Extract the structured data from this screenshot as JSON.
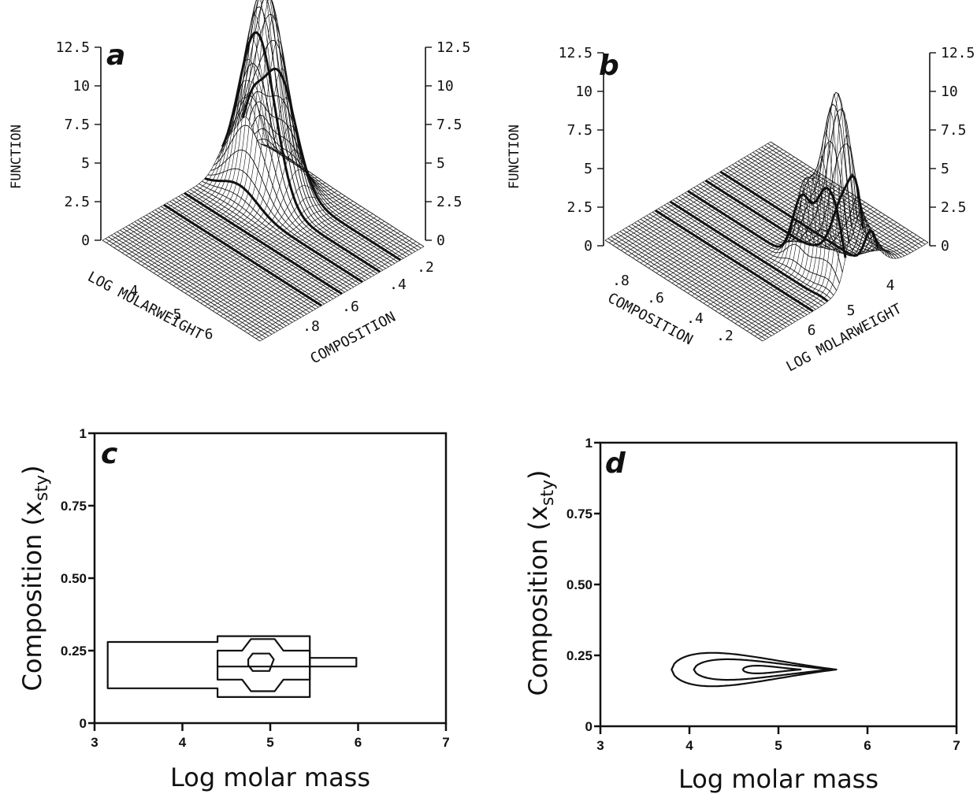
{
  "chart_data": [
    {
      "id": "a",
      "type": "surface3d",
      "panel_label": "a",
      "zlabel": "FUNCTION",
      "xlabel": "LOG MOLARWEIGHT",
      "ylabel": "COMPOSITION",
      "zticks": [
        "0",
        "2.5",
        "5",
        "7.5",
        "10",
        "12.5"
      ],
      "zlim": [
        0,
        12.5
      ],
      "xticks": [
        "4",
        "5",
        "6"
      ],
      "yticks": [
        ".8",
        ".6",
        ".4",
        ".2"
      ],
      "peak": {
        "log_molar_mass": 5.0,
        "composition": 0.2,
        "height": 12.5
      }
    },
    {
      "id": "b",
      "type": "surface3d",
      "panel_label": "b",
      "zlabel": "FUNCTION",
      "xlabel": "LOG MOLARWEIGHT",
      "ylabel": "COMPOSITION",
      "zticks": [
        "0",
        "2.5",
        "5",
        "7.5",
        "10",
        "12.5"
      ],
      "zlim": [
        0,
        12.5
      ],
      "xticks": [
        "6",
        "5",
        "4"
      ],
      "yticks": [
        ".8",
        ".6",
        ".4",
        ".2"
      ],
      "peak": {
        "log_molar_mass": 4.9,
        "composition": 0.2,
        "height": 10.5
      }
    },
    {
      "id": "c",
      "type": "contour",
      "panel_label": "c",
      "xlabel": "Log molar mass",
      "ylabel_main": "Composition (x",
      "ylabel_sub": "sty",
      "ylabel_end": ")",
      "xlim": [
        3,
        7
      ],
      "ylim": [
        0,
        1
      ],
      "xticks": [
        "3",
        "4",
        "5",
        "6",
        "7"
      ],
      "yticks": [
        "0",
        "0.25",
        "0.50",
        "0.75",
        "1"
      ],
      "contours": [
        [
          [
            3.15,
            0.28
          ],
          [
            4.4,
            0.28
          ],
          [
            4.4,
            0.3
          ],
          [
            5.45,
            0.3
          ],
          [
            5.45,
            0.09
          ],
          [
            4.4,
            0.09
          ],
          [
            4.4,
            0.12
          ],
          [
            3.15,
            0.12
          ]
        ],
        [
          [
            4.4,
            0.25
          ],
          [
            4.68,
            0.25
          ],
          [
            4.78,
            0.29
          ],
          [
            5.05,
            0.29
          ],
          [
            5.15,
            0.25
          ],
          [
            5.45,
            0.25
          ],
          [
            5.45,
            0.15
          ],
          [
            5.15,
            0.15
          ],
          [
            5.05,
            0.11
          ],
          [
            4.78,
            0.11
          ],
          [
            4.68,
            0.15
          ],
          [
            4.4,
            0.15
          ]
        ],
        [
          [
            4.75,
            0.22
          ],
          [
            4.8,
            0.24
          ],
          [
            4.99,
            0.24
          ],
          [
            5.04,
            0.22
          ],
          [
            4.99,
            0.18
          ],
          [
            4.8,
            0.18
          ],
          [
            4.75,
            0.2
          ]
        ],
        [
          [
            5.45,
            0.225
          ],
          [
            5.98,
            0.225
          ],
          [
            5.98,
            0.195
          ],
          [
            5.45,
            0.195
          ]
        ],
        [
          [
            4.4,
            0.195
          ],
          [
            5.45,
            0.195
          ]
        ]
      ]
    },
    {
      "id": "d",
      "type": "contour",
      "panel_label": "d",
      "xlabel": "Log molar mass",
      "ylabel_main": "Composition (x",
      "ylabel_sub": "sty",
      "ylabel_end": ")",
      "xlim": [
        3,
        7
      ],
      "ylim": [
        0,
        1
      ],
      "xticks": [
        "3",
        "4",
        "5",
        "6",
        "7"
      ],
      "yticks": [
        "0",
        "0.25",
        "0.50",
        "0.75",
        "1"
      ],
      "contours": [
        {
          "xmin": 3.8,
          "xmax": 5.65,
          "ycenter": 0.2,
          "yhalf": 0.065
        },
        {
          "xmin": 4.05,
          "xmax": 5.6,
          "ycenter": 0.2,
          "yhalf": 0.04
        },
        {
          "xmin": 4.6,
          "xmax": 5.25,
          "ycenter": 0.2,
          "yhalf": 0.015
        }
      ]
    }
  ]
}
